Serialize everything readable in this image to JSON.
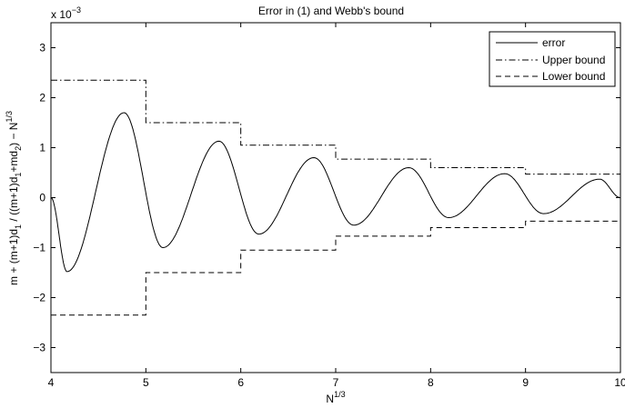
{
  "chart_data": {
    "type": "line",
    "title": "Error in (1) and Webb's bound",
    "xlabel": "N",
    "xlabel_sup": "1/3",
    "ylabel": "m + (m+1)d₁ / ((m+1)d₁+md₂) − N¹ᐟ³",
    "ylabel_parts": {
      "a": "m + (m+1)d",
      "a_sub": "1",
      "b": " / ((m+1)d",
      "b_sub": "1",
      "c": "+md",
      "c_sub": "2",
      "d": ") − N",
      "d_sup": "1/3"
    },
    "y_exponent_base": "x 10",
    "y_exponent_power": "−3",
    "xlim": [
      4,
      10
    ],
    "ylim": [
      -3.5,
      3.5
    ],
    "xticks": [
      4,
      5,
      6,
      7,
      8,
      9,
      10
    ],
    "xtick_labels": [
      "4",
      "5",
      "6",
      "7",
      "8",
      "9",
      "10"
    ],
    "yticks": [
      -3,
      -2,
      -1,
      0,
      1,
      2,
      3
    ],
    "ytick_labels": [
      "−3",
      "−2",
      "−1",
      "0",
      "1",
      "2",
      "3"
    ],
    "grid": false,
    "legend_position": "top-right",
    "series": [
      {
        "name": "error",
        "style": "solid",
        "amplitude_envelope": [
          [
            4.17,
            -1.48
          ],
          [
            4.77,
            1.7
          ],
          [
            5.18,
            -1.0
          ],
          [
            5.77,
            1.13
          ],
          [
            6.19,
            -0.73
          ],
          [
            6.77,
            0.8
          ],
          [
            7.19,
            -0.55
          ],
          [
            7.77,
            0.6
          ],
          [
            8.19,
            -0.4
          ],
          [
            8.78,
            0.48
          ],
          [
            9.19,
            -0.32
          ],
          [
            9.78,
            0.37
          ]
        ],
        "endpoints": [
          [
            4.0,
            0.0
          ],
          [
            10.0,
            0.0
          ]
        ]
      },
      {
        "name": "Upper bound",
        "style": "dashdot",
        "steps": [
          [
            4,
            5,
            2.35
          ],
          [
            5,
            6,
            1.5
          ],
          [
            6,
            7,
            1.05
          ],
          [
            7,
            8,
            0.77
          ],
          [
            8,
            9,
            0.6
          ],
          [
            9,
            10,
            0.47
          ]
        ]
      },
      {
        "name": "Lower bound",
        "style": "dashed",
        "steps": [
          [
            4,
            5,
            -2.35
          ],
          [
            5,
            6,
            -1.5
          ],
          [
            6,
            7,
            -1.05
          ],
          [
            7,
            8,
            -0.77
          ],
          [
            8,
            9,
            -0.6
          ],
          [
            9,
            10,
            -0.47
          ]
        ]
      }
    ]
  }
}
